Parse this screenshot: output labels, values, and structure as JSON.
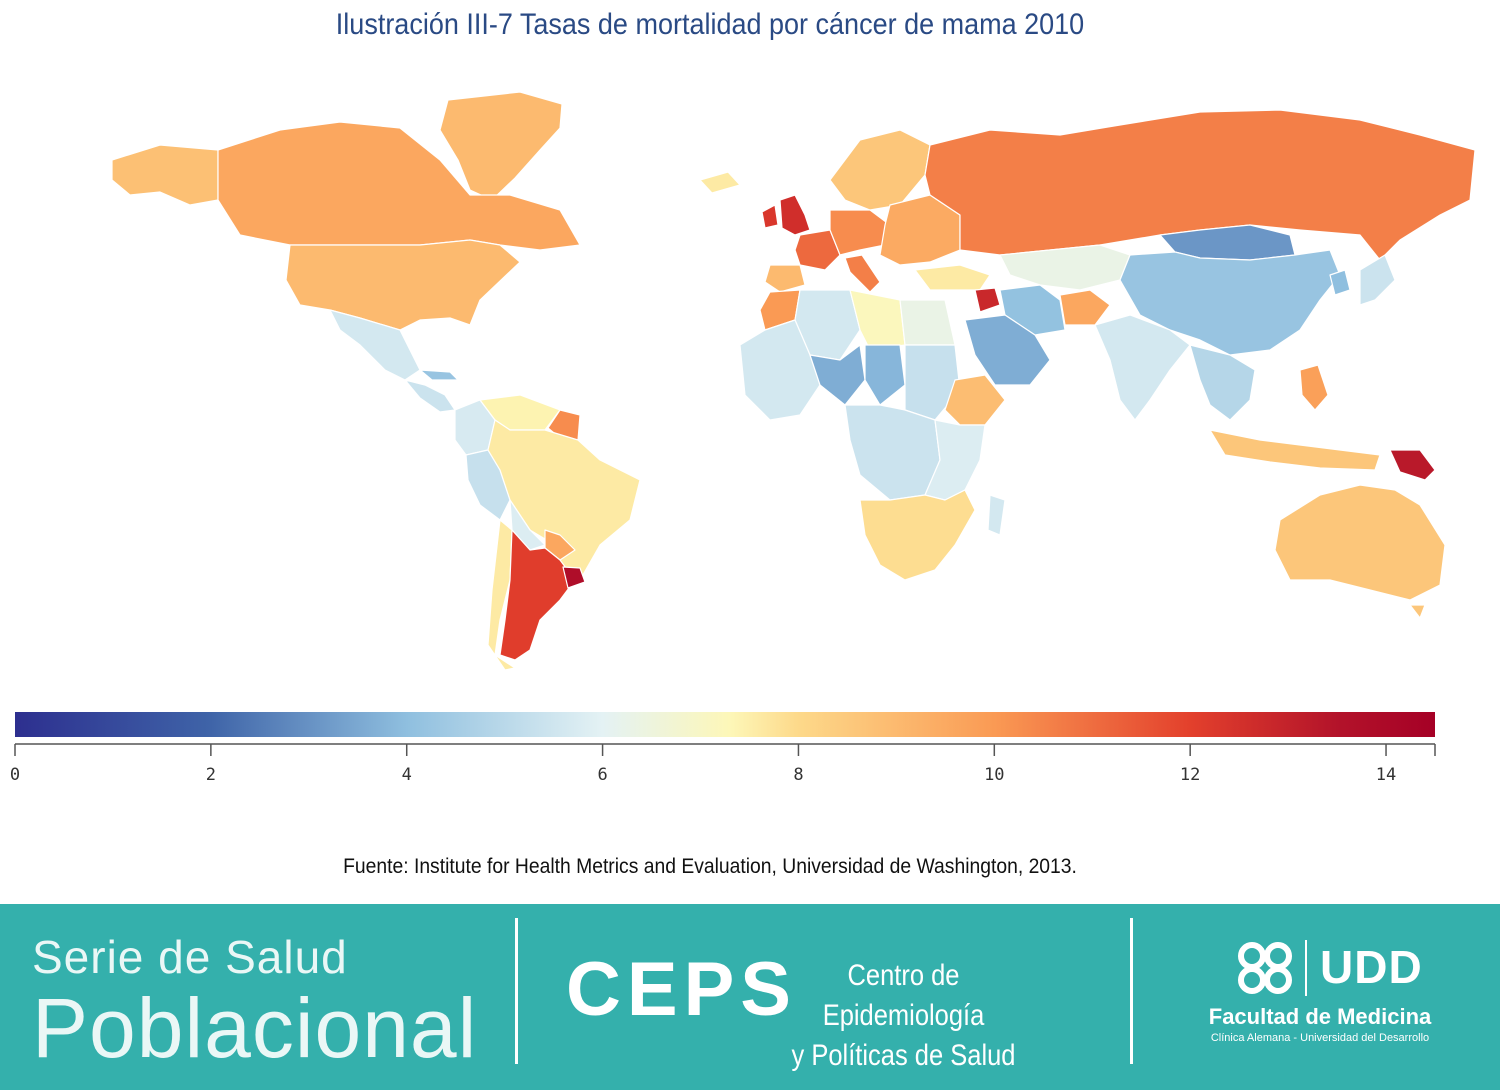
{
  "title": "Ilustración III-7 Tasas de mortalidad por cáncer de mama 2010",
  "legend": {
    "min": 0,
    "max": 14.5,
    "ticks": [
      "0",
      "2",
      "4",
      "6",
      "8",
      "10",
      "12",
      "14"
    ],
    "stops": [
      {
        "value": 0,
        "color": "#2d2f8f"
      },
      {
        "value": 2,
        "color": "#3f64a8"
      },
      {
        "value": 4,
        "color": "#8fbfdf"
      },
      {
        "value": 6,
        "color": "#e4f2f4"
      },
      {
        "value": 7.3,
        "color": "#fdf7b8"
      },
      {
        "value": 8,
        "color": "#fdd98a"
      },
      {
        "value": 10,
        "color": "#fa9a54"
      },
      {
        "value": 12,
        "color": "#e3402c"
      },
      {
        "value": 13.5,
        "color": "#b3132a"
      },
      {
        "value": 14.5,
        "color": "#a50026"
      }
    ]
  },
  "map_regions": [
    {
      "name": "Greenland",
      "value": 9.0
    },
    {
      "name": "Canada",
      "value": 9.6
    },
    {
      "name": "Alaska",
      "value": 8.8
    },
    {
      "name": "United States",
      "value": 9.0
    },
    {
      "name": "Mexico",
      "value": 5.6
    },
    {
      "name": "Central America",
      "value": 5.4
    },
    {
      "name": "Cuba",
      "value": 4.2
    },
    {
      "name": "Venezuela",
      "value": 7.4
    },
    {
      "name": "Colombia",
      "value": 5.7
    },
    {
      "name": "Guyana",
      "value": 10.3
    },
    {
      "name": "Brazil",
      "value": 7.6
    },
    {
      "name": "Peru",
      "value": 5.3
    },
    {
      "name": "Bolivia",
      "value": 5.8
    },
    {
      "name": "Paraguay",
      "value": 9.6
    },
    {
      "name": "Chile",
      "value": 7.6
    },
    {
      "name": "Argentina",
      "value": 12.1
    },
    {
      "name": "Uruguay",
      "value": 13.8
    },
    {
      "name": "Iceland",
      "value": 7.6
    },
    {
      "name": "Scandinavia",
      "value": 8.6
    },
    {
      "name": "United Kingdom",
      "value": 12.6
    },
    {
      "name": "Ireland",
      "value": 12.3
    },
    {
      "name": "France",
      "value": 11.1
    },
    {
      "name": "Spain",
      "value": 9.0
    },
    {
      "name": "Central Europe",
      "value": 10.3
    },
    {
      "name": "Italy",
      "value": 10.6
    },
    {
      "name": "Eastern Europe",
      "value": 9.5
    },
    {
      "name": "Russia",
      "value": 10.6
    },
    {
      "name": "Turkey",
      "value": 7.6
    },
    {
      "name": "Kazakhstan",
      "value": 6.3
    },
    {
      "name": "Mongolia",
      "value": 3.1
    },
    {
      "name": "China",
      "value": 4.2
    },
    {
      "name": "Japan",
      "value": 5.4
    },
    {
      "name": "Korea",
      "value": 4.0
    },
    {
      "name": "Iran",
      "value": 4.1
    },
    {
      "name": "Afghanistan",
      "value": 9.6
    },
    {
      "name": "Saudi Arabia",
      "value": 3.6
    },
    {
      "name": "Syria",
      "value": 12.8
    },
    {
      "name": "India",
      "value": 5.6
    },
    {
      "name": "Southeast Asia",
      "value": 4.9
    },
    {
      "name": "Philippines",
      "value": 9.8
    },
    {
      "name": "Indonesia",
      "value": 8.6
    },
    {
      "name": "Papua New Guinea",
      "value": 13.3
    },
    {
      "name": "Australia",
      "value": 8.6
    },
    {
      "name": "North Africa West",
      "value": 10.0
    },
    {
      "name": "Algeria",
      "value": 5.6
    },
    {
      "name": "Libya",
      "value": 7.2
    },
    {
      "name": "Egypt",
      "value": 6.3
    },
    {
      "name": "West Africa",
      "value": 5.6
    },
    {
      "name": "Niger",
      "value": 3.6
    },
    {
      "name": "Chad",
      "value": 3.8
    },
    {
      "name": "Sudan",
      "value": 5.3
    },
    {
      "name": "Ethiopia",
      "value": 8.9
    },
    {
      "name": "Central Africa",
      "value": 5.4
    },
    {
      "name": "East Africa",
      "value": 5.8
    },
    {
      "name": "Southern Africa",
      "value": 7.9
    },
    {
      "name": "Madagascar",
      "value": 5.6
    }
  ],
  "source": "Fuente: Institute for Health Metrics and Evaluation, Universidad de Washington, 2013.",
  "footer": {
    "serie_line1": "Serie de Salud",
    "serie_line2": "Poblacional",
    "ceps_name": "CEPS",
    "ceps_line1": "Centro de Epidemiología",
    "ceps_line2": "y Políticas de Salud",
    "udd_name": "UDD",
    "facultad": "Facultad de Medicina",
    "facultad_sub": "Clínica Alemana - Universidad del Desarrollo"
  }
}
